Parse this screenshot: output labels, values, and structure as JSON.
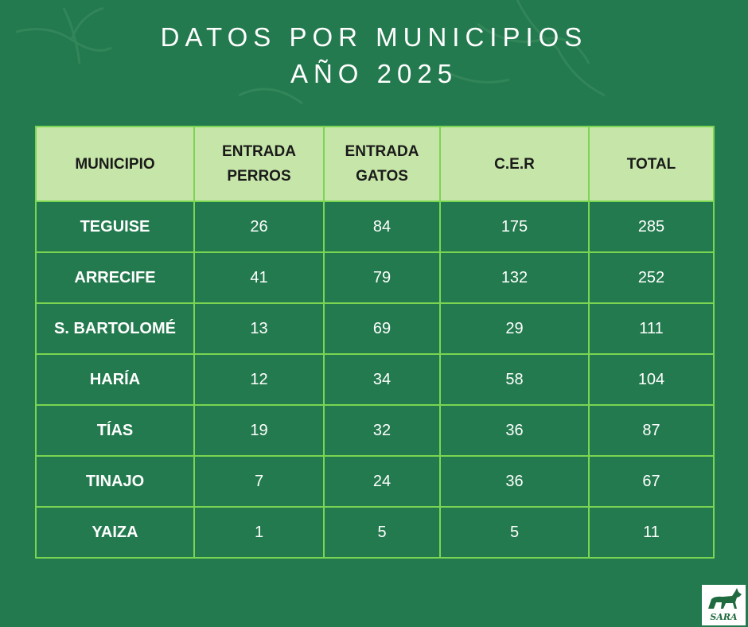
{
  "title": {
    "line1": "DATOS POR MUNICIPIOS",
    "line2": "AÑO 2025"
  },
  "table": {
    "headers": [
      {
        "line1": "MUNICIPIO",
        "line2": ""
      },
      {
        "line1": "ENTRADA",
        "line2": "PERROS"
      },
      {
        "line1": "ENTRADA",
        "line2": "GATOS"
      },
      {
        "line1": "C.E.R",
        "line2": ""
      },
      {
        "line1": "TOTAL",
        "line2": ""
      }
    ],
    "rows": [
      [
        "TEGUISE",
        "26",
        "84",
        "175",
        "285"
      ],
      [
        "ARRECIFE",
        "41",
        "79",
        "132",
        "252"
      ],
      [
        "S. BARTOLOMÉ",
        "13",
        "69",
        "29",
        "111"
      ],
      [
        "HARÍA",
        "12",
        "34",
        "58",
        "104"
      ],
      [
        "TÍAS",
        "19",
        "32",
        "36",
        "87"
      ],
      [
        "TINAJO",
        "7",
        "24",
        "36",
        "67"
      ],
      [
        "YAIZA",
        "1",
        "5",
        "5",
        "11"
      ]
    ]
  },
  "logo": {
    "text": "SARA"
  },
  "colors": {
    "background": "#237a4e",
    "header_fill": "#c5e6a8",
    "grid_line": "#7ad552"
  }
}
